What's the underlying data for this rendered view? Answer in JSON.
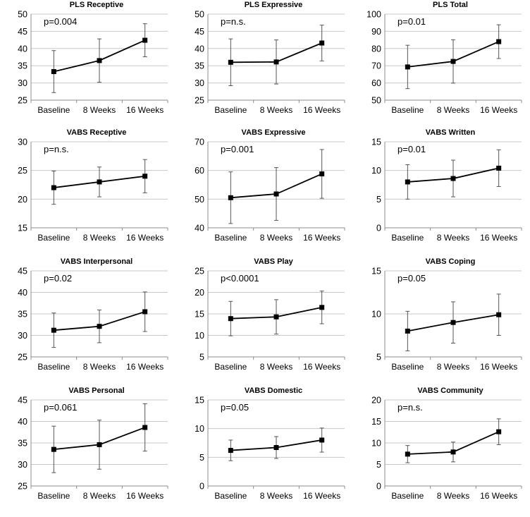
{
  "chart_data": [
    {
      "type": "line",
      "title": "PLS Receptive",
      "annotation": "p=0.004",
      "categories": [
        "Baseline",
        "8 Weeks",
        "16 Weeks"
      ],
      "values": [
        33.3,
        36.5,
        42.4
      ],
      "errors": [
        6.1,
        6.3,
        4.8
      ],
      "ylim": [
        25,
        50
      ],
      "ytick_step": 5,
      "ticks": [
        "25",
        "30",
        "35",
        "40",
        "45",
        "50"
      ]
    },
    {
      "type": "line",
      "title": "PLS Expressive",
      "annotation": "p=n.s.",
      "categories": [
        "Baseline",
        "8 Weeks",
        "16 Weeks"
      ],
      "values": [
        36.0,
        36.1,
        41.6
      ],
      "errors": [
        6.8,
        6.4,
        5.2
      ],
      "ylim": [
        25,
        50
      ],
      "ytick_step": 5,
      "ticks": [
        "25",
        "30",
        "35",
        "40",
        "45",
        "50"
      ]
    },
    {
      "type": "line",
      "title": "PLS Total",
      "annotation": "p=0.01",
      "categories": [
        "Baseline",
        "8 Weeks",
        "16 Weeks"
      ],
      "values": [
        69.3,
        72.5,
        84.0
      ],
      "errors": [
        12.6,
        12.6,
        9.8
      ],
      "ylim": [
        50,
        100
      ],
      "ytick_step": 10,
      "ticks": [
        "50",
        "60",
        "70",
        "80",
        "90",
        "100"
      ]
    },
    {
      "type": "line",
      "title": "VABS Receptive",
      "annotation": "p=n.s.",
      "categories": [
        "Baseline",
        "8 Weeks",
        "16 Weeks"
      ],
      "values": [
        22.0,
        23.0,
        24.0
      ],
      "errors": [
        2.9,
        2.6,
        2.9
      ],
      "ylim": [
        15,
        30
      ],
      "ytick_step": 5,
      "ticks": [
        "15",
        "20",
        "25",
        "30"
      ]
    },
    {
      "type": "line",
      "title": "VABS Expressive",
      "annotation": "p=0.001",
      "categories": [
        "Baseline",
        "8 Weeks",
        "16 Weeks"
      ],
      "values": [
        50.5,
        51.8,
        58.8
      ],
      "errors": [
        9.0,
        9.2,
        8.5
      ],
      "ylim": [
        40,
        70
      ],
      "ytick_step": 10,
      "ticks": [
        "40",
        "50",
        "60",
        "70"
      ]
    },
    {
      "type": "line",
      "title": "VABS Written",
      "annotation": "p=0.01",
      "categories": [
        "Baseline",
        "8 Weeks",
        "16 Weeks"
      ],
      "values": [
        8.0,
        8.6,
        10.4
      ],
      "errors": [
        3.0,
        3.2,
        3.2
      ],
      "ylim": [
        0,
        15
      ],
      "ytick_step": 5,
      "ticks": [
        "0",
        "5",
        "10",
        "15"
      ]
    },
    {
      "type": "line",
      "title": "VABS Interpersonal",
      "annotation": "p=0.02",
      "categories": [
        "Baseline",
        "8 Weeks",
        "16 Weeks"
      ],
      "values": [
        31.2,
        32.1,
        35.5
      ],
      "errors": [
        4.0,
        3.8,
        4.6
      ],
      "ylim": [
        25,
        45
      ],
      "ytick_step": 5,
      "ticks": [
        "25",
        "30",
        "35",
        "40",
        "45"
      ]
    },
    {
      "type": "line",
      "title": "VABS Play",
      "annotation": "p<0.0001",
      "categories": [
        "Baseline",
        "8 Weeks",
        "16 Weeks"
      ],
      "values": [
        13.9,
        14.3,
        16.5
      ],
      "errors": [
        4.0,
        4.0,
        3.8
      ],
      "ylim": [
        5,
        25
      ],
      "ytick_step": 5,
      "ticks": [
        "5",
        "10",
        "15",
        "20",
        "25"
      ]
    },
    {
      "type": "line",
      "title": "VABS Coping",
      "annotation": "p=0.05",
      "categories": [
        "Baseline",
        "8 Weeks",
        "16 Weeks"
      ],
      "values": [
        8.0,
        9.0,
        9.9
      ],
      "errors": [
        2.3,
        2.4,
        2.4
      ],
      "ylim": [
        5,
        15
      ],
      "ytick_step": 5,
      "ticks": [
        "5",
        "10",
        "15"
      ]
    },
    {
      "type": "line",
      "title": "VABS Personal",
      "annotation": "p=0.061",
      "categories": [
        "Baseline",
        "8 Weeks",
        "16 Weeks"
      ],
      "values": [
        33.5,
        34.6,
        38.6
      ],
      "errors": [
        5.4,
        5.7,
        5.5
      ],
      "ylim": [
        25,
        45
      ],
      "ytick_step": 5,
      "ticks": [
        "25",
        "30",
        "35",
        "40",
        "45"
      ]
    },
    {
      "type": "line",
      "title": "VABS Domestic",
      "annotation": "p=0.05",
      "categories": [
        "Baseline",
        "8 Weeks",
        "16 Weeks"
      ],
      "values": [
        6.2,
        6.7,
        8.0
      ],
      "errors": [
        1.8,
        1.9,
        2.1
      ],
      "ylim": [
        0,
        15
      ],
      "ytick_step": 5,
      "ticks": [
        "0",
        "5",
        "10",
        "15"
      ]
    },
    {
      "type": "line",
      "title": "VABS Community",
      "annotation": "p=n.s.",
      "categories": [
        "Baseline",
        "8 Weeks",
        "16 Weeks"
      ],
      "values": [
        7.4,
        7.9,
        12.6
      ],
      "errors": [
        2.0,
        2.3,
        3.0
      ],
      "ylim": [
        0,
        20
      ],
      "ytick_step": 5,
      "ticks": [
        "0",
        "5",
        "10",
        "15",
        "20"
      ]
    }
  ]
}
